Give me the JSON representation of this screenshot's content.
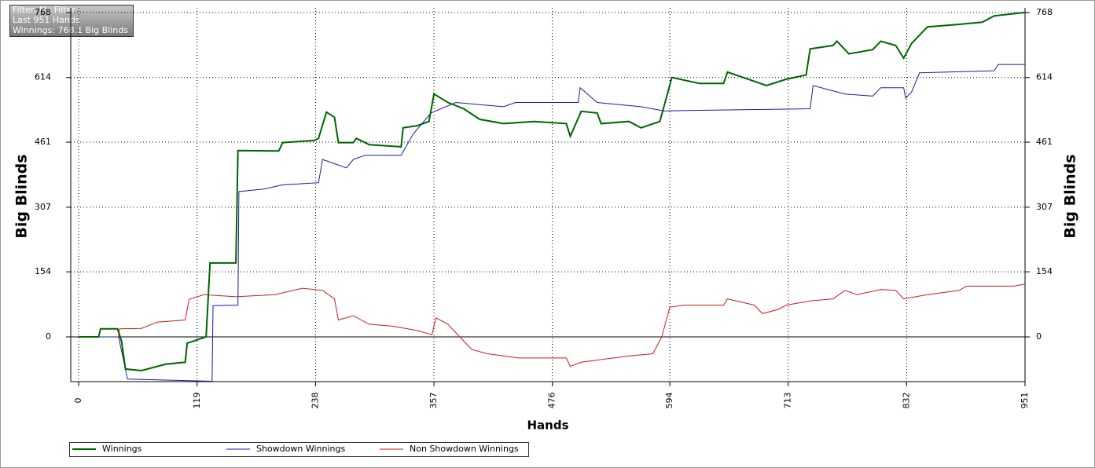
{
  "chart_data": {
    "type": "line",
    "annotations": [
      "Filter: No Filter",
      "Last 951 Hands",
      "Winnings: 768.1 Big Blinds"
    ],
    "xlabel": "Hands",
    "ylabel": "Big Blinds",
    "y2label": "Big Blinds",
    "xlim": [
      -8,
      951
    ],
    "xticks": [
      0,
      119,
      238,
      357,
      476,
      594,
      713,
      832,
      951
    ],
    "ylim": [
      -106,
      779
    ],
    "yticks": [
      0,
      154,
      307,
      461,
      614,
      768
    ],
    "y2lim": [
      -106,
      779
    ],
    "y2ticks": [
      0,
      154,
      307,
      461,
      614,
      768
    ],
    "grid": true,
    "legend": "bottom",
    "series": [
      {
        "name": "Winnings",
        "color": "#006400",
        "x": [
          0,
          20,
          22,
          39,
          43,
          47,
          63,
          87,
          107,
          109,
          128,
          132,
          134,
          158,
          160,
          201,
          205,
          237,
          241,
          249,
          257,
          261,
          276,
          279,
          292,
          324,
          326,
          340,
          352,
          357,
          371,
          387,
          403,
          427,
          458,
          490,
          494,
          505,
          521,
          525,
          553,
          565,
          584,
          591,
          596,
          624,
          648,
          652,
          679,
          691,
          711,
          731,
          735,
          758,
          762,
          774,
          798,
          806,
          821,
          829,
          837,
          853,
          885,
          908,
          920,
          951
        ],
        "values": [
          0,
          0,
          19,
          19,
          -10,
          -76,
          -80,
          -65,
          -60,
          -15,
          0,
          175,
          175,
          175,
          441,
          440,
          460,
          465,
          470,
          532,
          520,
          460,
          460,
          470,
          455,
          450,
          495,
          500,
          510,
          575,
          555,
          540,
          515,
          505,
          510,
          505,
          475,
          534,
          530,
          505,
          510,
          495,
          510,
          570,
          614,
          600,
          600,
          627,
          605,
          595,
          610,
          620,
          682,
          690,
          700,
          670,
          680,
          700,
          690,
          660,
          695,
          734,
          740,
          745,
          760,
          768
        ]
      },
      {
        "name": "Showdown Winnings",
        "color": "#1a1aa0",
        "x": [
          0,
          40,
          41,
          49,
          134,
          135,
          160,
          161,
          186,
          205,
          241,
          245,
          269,
          276,
          288,
          324,
          336,
          354,
          379,
          427,
          439,
          502,
          504,
          521,
          565,
          588,
          735,
          738,
          770,
          798,
          806,
          829,
          831,
          837,
          845,
          920,
          924,
          951
        ],
        "values": [
          0,
          0,
          -10,
          -100,
          -105,
          74,
          75,
          344,
          350,
          360,
          365,
          420,
          400,
          420,
          430,
          430,
          480,
          530,
          555,
          545,
          555,
          555,
          590,
          555,
          545,
          535,
          540,
          595,
          575,
          570,
          590,
          590,
          565,
          580,
          625,
          630,
          645,
          645
        ]
      },
      {
        "name": "Non Showdown Winnings",
        "color": "#cc1a1a",
        "x": [
          0,
          40,
          41,
          63,
          79,
          107,
          111,
          126,
          158,
          197,
          225,
          245,
          257,
          261,
          276,
          292,
          316,
          340,
          355,
          359,
          371,
          387,
          395,
          411,
          442,
          490,
          494,
          505,
          553,
          577,
          586,
          594,
          608,
          648,
          652,
          679,
          687,
          703,
          711,
          735,
          758,
          770,
          782,
          806,
          821,
          829,
          853,
          885,
          892,
          940,
          951
        ],
        "values": [
          0,
          0,
          19,
          20,
          35,
          40,
          89,
          100,
          95,
          100,
          115,
          110,
          90,
          40,
          50,
          30,
          25,
          15,
          5,
          45,
          30,
          -10,
          -30,
          -40,
          -50,
          -50,
          -70,
          -60,
          -45,
          -40,
          0,
          70,
          75,
          75,
          90,
          75,
          55,
          65,
          75,
          85,
          90,
          110,
          100,
          112,
          110,
          90,
          100,
          110,
          120,
          120,
          125
        ]
      }
    ]
  }
}
